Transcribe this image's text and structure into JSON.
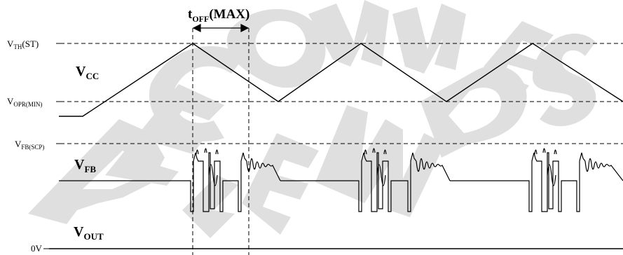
{
  "labels": {
    "vth": {
      "main": "V",
      "sub": "TH",
      "suffix": "(ST)"
    },
    "vopr": {
      "main": "V",
      "sub": "OPR(MIN)"
    },
    "vfbscp": {
      "main": "V",
      "sub": "FB(SCP)"
    },
    "zero": "0V",
    "vcc": {
      "main": "V",
      "sub": "CC"
    },
    "vfb": {
      "main": "V",
      "sub": "FB"
    },
    "vout": {
      "main": "V",
      "sub": "OUT"
    },
    "toff": {
      "main": "t",
      "sub": "OFF",
      "suffix": "(MAX)"
    }
  },
  "watermark_text": "NOT RECOMMENDED FOR NEW DESIGNS",
  "colors": {
    "line": "#000000",
    "watermark": "#d8d8d8"
  }
}
